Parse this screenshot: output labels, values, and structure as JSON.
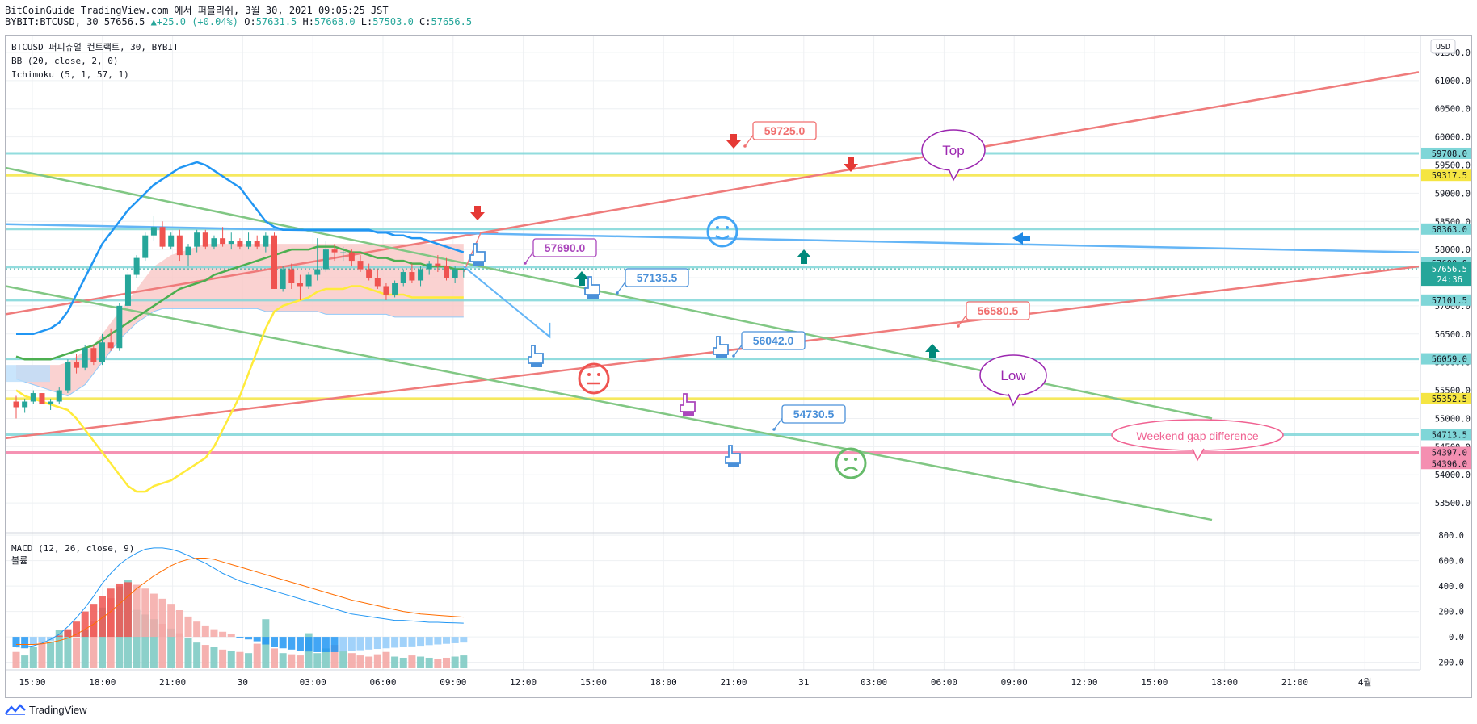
{
  "header": {
    "line1": "BitCoinGuide TradingView.com 에서 퍼블리쉬, 3월 30, 2021 09:05:25 JST",
    "line2_symbol": "BYBIT:BTCUSD, 30 57656.5",
    "line2_change": "+25.0 (+0.04%)",
    "o_label": "O:",
    "o_value": "57631.5",
    "h_label": "H:",
    "h_value": "57668.0",
    "l_label": "L:",
    "l_value": "57503.0",
    "c_label": "C:",
    "c_value": "57656.5",
    "up_color": "#26a69a"
  },
  "legend": {
    "symbol": "BTCUSD 퍼피츄얼 컨트랙트, 30, BYBIT",
    "bb": "BB (20, close, 2, 0)",
    "ichimoku": "Ichimoku (5, 1, 57, 1)",
    "macd": "MACD (12, 26, close, 9)",
    "volume": "볼륨"
  },
  "currency_button": "USD",
  "footer": {
    "brand": "TradingView"
  },
  "chart_data": {
    "type": "candlestick",
    "price_axis": {
      "ticks": [
        "61500.0",
        "61000.0",
        "60500.0",
        "60000.0",
        "59500.0",
        "59000.0",
        "58500.0",
        "58000.0",
        "57500.0",
        "57000.0",
        "56500.0",
        "56000.0",
        "55500.0",
        "55000.0",
        "54500.0",
        "54000.0",
        "53500.0"
      ],
      "range": [
        53000,
        61800
      ]
    },
    "price_levels": [
      {
        "value": 59708.0,
        "label": "59708.0",
        "color": "#7fd6d8"
      },
      {
        "value": 59317.5,
        "label": "59317.5",
        "color": "#f5e542"
      },
      {
        "value": 58363.0,
        "label": "58363.0",
        "color": "#7fd6d8"
      },
      {
        "value": 57690.0,
        "label": "57690.0",
        "color": "#7fd6d8"
      },
      {
        "value": 57101.5,
        "label": "57101.5",
        "color": "#7fd6d8"
      },
      {
        "value": 56059.0,
        "label": "56059.0",
        "color": "#7fd6d8"
      },
      {
        "value": 55352.5,
        "label": "55352.5",
        "color": "#f5e542"
      },
      {
        "value": 54713.5,
        "label": "54713.5",
        "color": "#7fd6d8"
      },
      {
        "value": 54397.0,
        "label": "54397.0",
        "color": "#f48fb1"
      },
      {
        "value": 54396.0,
        "label": "54396.0",
        "color": "#f48fb1"
      }
    ],
    "last_price": {
      "value": 57656.5,
      "label": "57656.5",
      "countdown": "24:36",
      "color": "#26a69a"
    },
    "time_axis": [
      "15:00",
      "18:00",
      "21:00",
      "30",
      "03:00",
      "06:00",
      "09:00",
      "12:00",
      "15:00",
      "18:00",
      "21:00",
      "31",
      "03:00",
      "06:00",
      "09:00",
      "12:00",
      "15:00",
      "18:00",
      "21:00",
      "4월"
    ],
    "candles_ohlc": [
      [
        55300,
        55400,
        55000,
        55200
      ],
      [
        55200,
        55350,
        55100,
        55300
      ],
      [
        55300,
        55500,
        55250,
        55450
      ],
      [
        55450,
        55450,
        55250,
        55250
      ],
      [
        55250,
        55350,
        55150,
        55300
      ],
      [
        55300,
        55550,
        55250,
        55500
      ],
      [
        55500,
        56050,
        55450,
        56000
      ],
      [
        56000,
        56150,
        55800,
        55900
      ],
      [
        55900,
        56300,
        55850,
        56250
      ],
      [
        56250,
        56300,
        55950,
        56000
      ],
      [
        56000,
        56500,
        55950,
        56350
      ],
      [
        56350,
        56600,
        56200,
        56250
      ],
      [
        56250,
        57050,
        56200,
        57000
      ],
      [
        57000,
        57600,
        56950,
        57550
      ],
      [
        57550,
        57900,
        57500,
        57850
      ],
      [
        57850,
        58300,
        57800,
        58250
      ],
      [
        58250,
        58600,
        58150,
        58400
      ],
      [
        58400,
        58500,
        58000,
        58050
      ],
      [
        58050,
        58300,
        58000,
        58250
      ],
      [
        58250,
        58350,
        57800,
        57900
      ],
      [
        57900,
        58100,
        57700,
        58050
      ],
      [
        58050,
        58350,
        57950,
        58300
      ],
      [
        58300,
        58350,
        58000,
        58050
      ],
      [
        58050,
        58250,
        58000,
        58200
      ],
      [
        58200,
        58400,
        58050,
        58100
      ],
      [
        58100,
        58300,
        58000,
        58150
      ],
      [
        58150,
        58200,
        58000,
        58050
      ],
      [
        58050,
        58300,
        58000,
        58150
      ],
      [
        58150,
        58250,
        58000,
        58050
      ],
      [
        58050,
        58300,
        57950,
        58250
      ],
      [
        58250,
        58300,
        57300,
        57300
      ],
      [
        57300,
        57700,
        57250,
        57650
      ],
      [
        57650,
        57750,
        57300,
        57400
      ],
      [
        57400,
        57550,
        57100,
        57350
      ],
      [
        57350,
        57600,
        57300,
        57550
      ],
      [
        57550,
        58200,
        57450,
        57650
      ],
      [
        57650,
        58150,
        57600,
        58000
      ],
      [
        58000,
        58100,
        57800,
        57950
      ],
      [
        57950,
        58050,
        57800,
        57950
      ],
      [
        57950,
        58000,
        57700,
        57800
      ],
      [
        57800,
        57900,
        57600,
        57650
      ],
      [
        57650,
        57750,
        57450,
        57500
      ],
      [
        57500,
        57650,
        57300,
        57350
      ],
      [
        57350,
        57400,
        57100,
        57200
      ],
      [
        57200,
        57450,
        57150,
        57400
      ],
      [
        57400,
        57650,
        57350,
        57600
      ],
      [
        57600,
        57750,
        57400,
        57450
      ],
      [
        57450,
        57700,
        57350,
        57650
      ],
      [
        57650,
        57800,
        57550,
        57750
      ],
      [
        57750,
        57900,
        57600,
        57700
      ],
      [
        57700,
        57850,
        57450,
        57500
      ],
      [
        57500,
        57700,
        57400,
        57650
      ],
      [
        57631.5,
        57668.0,
        57503.0,
        57656.5
      ]
    ],
    "bb_basis": [
      56100,
      56050,
      56050,
      56050,
      56050,
      56100,
      56150,
      56200,
      56250,
      56300,
      56400,
      56500,
      56600,
      56700,
      56800,
      56900,
      57000,
      57100,
      57200,
      57300,
      57350,
      57400,
      57450,
      57550,
      57600,
      57650,
      57700,
      57750,
      57800,
      57850,
      57900,
      57950,
      58000,
      58000,
      58000,
      58050,
      58050,
      58050,
      58000,
      57950,
      57950,
      57900,
      57850,
      57850,
      57800,
      57800,
      57750,
      57750,
      57700,
      57700,
      57700,
      57650,
      57650
    ],
    "bb_upper": [
      56500,
      56500,
      56500,
      56550,
      56600,
      56700,
      56900,
      57200,
      57500,
      57800,
      58100,
      58300,
      58500,
      58700,
      58850,
      59000,
      59150,
      59250,
      59350,
      59450,
      59500,
      59550,
      59500,
      59400,
      59300,
      59200,
      59100,
      58900,
      58700,
      58500,
      58400,
      58350,
      58350,
      58350,
      58350,
      58350,
      58350,
      58350,
      58350,
      58350,
      58350,
      58350,
      58300,
      58300,
      58250,
      58250,
      58200,
      58200,
      58150,
      58100,
      58050,
      58000,
      57950
    ],
    "bb_lower": [
      55500,
      55400,
      55350,
      55300,
      55250,
      55200,
      55150,
      55000,
      54800,
      54600,
      54400,
      54200,
      54000,
      53800,
      53700,
      53700,
      53800,
      53850,
      53900,
      54000,
      54100,
      54200,
      54300,
      54500,
      54800,
      55100,
      55400,
      55800,
      56200,
      56600,
      56900,
      57000,
      57050,
      57100,
      57150,
      57250,
      57300,
      57300,
      57300,
      57350,
      57350,
      57300,
      57250,
      57200,
      57200,
      57200,
      57150,
      57150,
      57150,
      57150,
      57150,
      57150,
      57150
    ],
    "cloud_top": [
      55950,
      55950,
      55950,
      55950,
      55950,
      55950,
      56000,
      56100,
      56200,
      56300,
      56500,
      56700,
      56900,
      57100,
      57300,
      57500,
      57700,
      57800,
      57900,
      57950,
      58000,
      58050,
      58100,
      58100,
      58100,
      58100,
      58100,
      58100,
      58100,
      58100,
      58100,
      58100,
      58100,
      58100,
      58100,
      58100,
      58100,
      58100,
      58100,
      58100,
      58100,
      58100,
      58100,
      58100,
      58100,
      58100,
      58100,
      58100,
      58100,
      58100,
      58100,
      58100,
      58100
    ],
    "cloud_bottom": [
      55700,
      55650,
      55600,
      55550,
      55500,
      55450,
      55400,
      55500,
      55600,
      55800,
      56000,
      56200,
      56400,
      56550,
      56700,
      56800,
      56900,
      56950,
      56950,
      56950,
      56950,
      56950,
      56950,
      56950,
      56950,
      56950,
      56950,
      56950,
      56950,
      56900,
      56900,
      56900,
      56900,
      56900,
      56900,
      56900,
      56850,
      56850,
      56850,
      56850,
      56850,
      56850,
      56850,
      56850,
      56800,
      56800,
      56800,
      56800,
      56800,
      56800,
      56800,
      56800,
      56800
    ],
    "macd_axis": {
      "ticks": [
        "800.0",
        "600.0",
        "400.0",
        "200.0",
        "0.0",
        "-200.0"
      ],
      "range": [
        -260,
        820
      ]
    },
    "macd_hist": [
      -80,
      -90,
      -60,
      -40,
      -30,
      10,
      60,
      120,
      200,
      260,
      320,
      380,
      420,
      430,
      410,
      380,
      340,
      300,
      260,
      210,
      160,
      120,
      90,
      60,
      40,
      20,
      -5,
      -20,
      -35,
      -60,
      -80,
      -90,
      -100,
      -110,
      -115,
      -120,
      -120,
      -120,
      -115,
      -110,
      -105,
      -100,
      -95,
      -90,
      -85,
      -80,
      -75,
      -70,
      -65,
      -60,
      -55,
      -50,
      -45
    ],
    "macd_line": [
      -80,
      -80,
      -70,
      -50,
      -20,
      20,
      80,
      150,
      230,
      320,
      420,
      500,
      570,
      620,
      660,
      690,
      700,
      700,
      690,
      670,
      640,
      610,
      580,
      540,
      500,
      470,
      440,
      420,
      400,
      380,
      360,
      340,
      320,
      300,
      280,
      260,
      240,
      220,
      200,
      180,
      170,
      160,
      150,
      140,
      130,
      130,
      125,
      120,
      115,
      115,
      112,
      110,
      108
    ],
    "signal_line": [
      -60,
      -60,
      -60,
      -55,
      -45,
      -30,
      -10,
      20,
      60,
      100,
      150,
      200,
      260,
      320,
      380,
      430,
      480,
      520,
      560,
      590,
      610,
      620,
      620,
      610,
      590,
      570,
      550,
      530,
      510,
      490,
      470,
      450,
      430,
      410,
      390,
      370,
      350,
      330,
      310,
      290,
      275,
      260,
      245,
      230,
      215,
      200,
      190,
      180,
      175,
      170,
      165,
      160,
      155
    ],
    "volume": [
      140,
      110,
      180,
      220,
      230,
      330,
      330,
      260,
      330,
      400,
      520,
      600,
      700,
      760,
      500,
      460,
      420,
      380,
      340,
      300,
      260,
      220,
      200,
      180,
      160,
      150,
      140,
      130,
      210,
      420,
      170,
      130,
      120,
      110,
      300,
      130,
      170,
      200,
      150,
      130,
      110,
      100,
      120,
      140,
      100,
      90,
      110,
      100,
      90,
      80,
      90,
      100,
      110
    ],
    "annotations": {
      "callouts": [
        {
          "text": "59725.0",
          "color": "#f06f6f"
        },
        {
          "text": "57690.0",
          "color": "#ab47bc"
        },
        {
          "text": "57135.5",
          "color": "#4a90d9"
        },
        {
          "text": "56580.5",
          "color": "#f06f6f"
        },
        {
          "text": "56042.0",
          "color": "#4a90d9"
        },
        {
          "text": "54730.5",
          "color": "#4a90d9"
        }
      ],
      "bubbles": [
        {
          "text": "Top",
          "color": "#9c27b0"
        },
        {
          "text": "Low",
          "color": "#9c27b0"
        },
        {
          "text": "Weekend gap difference",
          "color": "#f06292"
        }
      ]
    }
  },
  "colors": {
    "up": "#26a69a",
    "down": "#ef5350",
    "bb_upper": "#2196f3",
    "bb_basis": "#4caf50",
    "bb_lower": "#ffeb3b",
    "cloud": "#f9c7c5",
    "macd": "#2196f3",
    "signal": "#ff6d00",
    "trend_red": "#ef7b7b",
    "trend_green": "#81c784",
    "trend_blue": "#64b5f6"
  }
}
